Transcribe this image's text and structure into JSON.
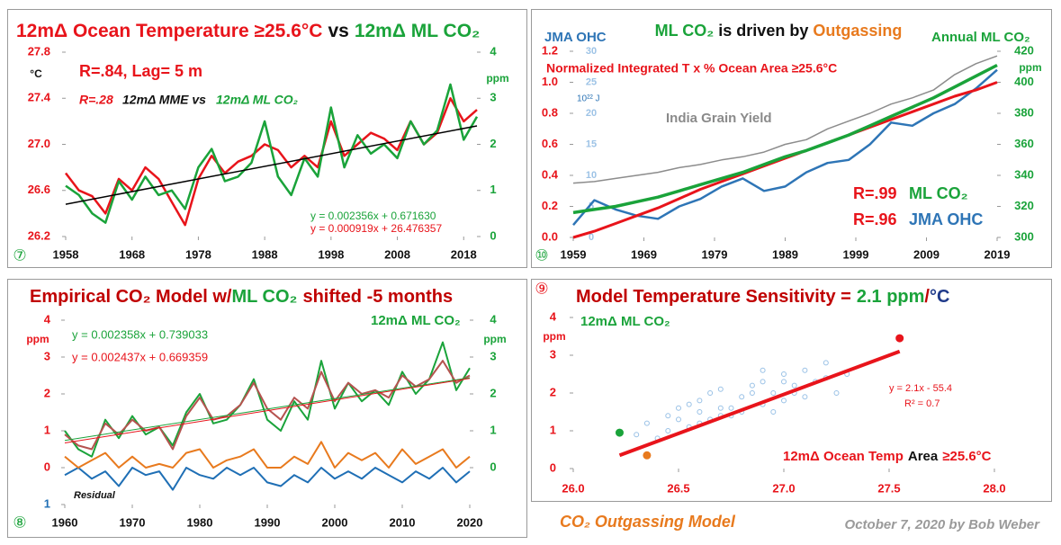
{
  "chart_data": [
    {
      "type": "line",
      "panel_label": "⑦",
      "title": [
        {
          "text": "12mΔ Ocean Temperature ≥25.6°C",
          "color": "#e8141b"
        },
        {
          "text": "vs",
          "color": "#111111"
        },
        {
          "text": "12mΔ ML CO₂",
          "color": "#1aa33a"
        }
      ],
      "ylabel": "°C",
      "y2label": "ppm",
      "x": [
        1958,
        1960,
        1962,
        1964,
        1966,
        1968,
        1970,
        1972,
        1974,
        1976,
        1978,
        1980,
        1982,
        1984,
        1986,
        1988,
        1990,
        1992,
        1994,
        1996,
        1998,
        2000,
        2002,
        2004,
        2006,
        2008,
        2010,
        2012,
        2014,
        2016,
        2018,
        2020
      ],
      "xlim": [
        1958,
        2020
      ],
      "xticks": [
        1958,
        1968,
        1978,
        1988,
        1998,
        2008,
        2018
      ],
      "ylim": [
        26.2,
        27.8
      ],
      "yticks": [
        26.2,
        26.6,
        {
          "value": 27,
          "label": "27.0"
        },
        27.4,
        27.8
      ],
      "y2lim": [
        0,
        4
      ],
      "y2ticks": [
        0,
        1,
        2,
        3,
        4
      ],
      "series": [
        {
          "color": "#e8141b",
          "values": [
            26.75,
            26.6,
            26.55,
            26.4,
            26.7,
            26.6,
            26.8,
            26.7,
            26.5,
            26.3,
            26.7,
            26.9,
            26.75,
            26.85,
            26.9,
            27.0,
            26.95,
            26.8,
            26.9,
            26.8,
            27.2,
            26.9,
            27.0,
            27.1,
            27.05,
            26.95,
            27.2,
            27.0,
            27.1,
            27.4,
            27.2,
            27.3
          ]
        },
        {
          "color": "#1aa33a",
          "axis": "y2",
          "values": [
            1.1,
            0.9,
            0.5,
            0.3,
            1.2,
            0.8,
            1.3,
            0.9,
            1.0,
            0.6,
            1.5,
            1.9,
            1.2,
            1.3,
            1.6,
            2.5,
            1.3,
            0.9,
            1.7,
            1.3,
            2.8,
            1.5,
            2.2,
            1.8,
            2.0,
            1.7,
            2.5,
            2.0,
            2.3,
            3.3,
            2.1,
            2.6
          ]
        },
        {
          "color": "#000000",
          "x": [
            1958,
            2020
          ],
          "values": [
            26.48,
            27.16
          ]
        }
      ],
      "annotations": [
        {
          "text": "R=.84, Lag= 5 m",
          "color": "#e8141b"
        },
        {
          "text": "R=.28",
          "color": "#e8141b"
        },
        {
          "text": "12mΔ MME vs",
          "color": "#111111"
        },
        {
          "text": "12mΔ ML CO₂",
          "color": "#1aa33a"
        },
        {
          "text": "y = 0.002356x + 0.671630",
          "color": "#1aa33a"
        },
        {
          "text": "y = 0.000919x + 26.476357",
          "color": "#e8141b"
        }
      ]
    },
    {
      "type": "line",
      "panel_label": "⑩",
      "title": [
        {
          "text": "ML CO₂",
          "color": "#1aa33a"
        },
        {
          "text": "is driven by",
          "color": "#111111"
        },
        {
          "text": "Outgassing",
          "color": "#e87a1e"
        }
      ],
      "y2label": "ppm",
      "x": [
        1959,
        1962,
        1965,
        1968,
        1971,
        1974,
        1977,
        1980,
        1983,
        1986,
        1989,
        1992,
        1995,
        1998,
        2001,
        2004,
        2007,
        2010,
        2013,
        2016,
        2019
      ],
      "xlim": [
        1959,
        2019
      ],
      "xticks": [
        1959,
        1969,
        1979,
        1989,
        1999,
        2009,
        2019
      ],
      "ylim": [
        0,
        1.2
      ],
      "yticks": [
        {
          "value": 0,
          "label": "0.0"
        },
        0.2,
        0.4,
        0.6,
        0.8,
        {
          "value": 1,
          "label": "1.0"
        },
        1.2
      ],
      "y2lim": [
        300,
        420
      ],
      "y2ticks": [
        300,
        320,
        340,
        360,
        380,
        400,
        420
      ],
      "y3lim": [
        0,
        30
      ],
      "y3ticks": [
        0,
        5,
        10,
        15,
        20,
        25,
        30
      ],
      "series": [
        {
          "color": "#8c8c8c",
          "values": [
            0.35,
            0.36,
            0.38,
            0.4,
            0.42,
            0.45,
            0.47,
            0.5,
            0.52,
            0.55,
            0.6,
            0.63,
            0.7,
            0.75,
            0.8,
            0.86,
            0.9,
            0.95,
            1.05,
            1.12,
            1.17
          ]
        },
        {
          "color": "#2e75b6",
          "axis": "y3",
          "values": [
            2,
            6,
            4.5,
            3.5,
            3,
            5,
            6.2,
            8.2,
            9.5,
            7.5,
            8.2,
            10.5,
            12,
            12.5,
            15,
            18.5,
            18,
            20,
            21.5,
            24,
            27
          ]
        },
        {
          "color": "#e8141b",
          "values": [
            0.0,
            0.04,
            0.09,
            0.14,
            0.19,
            0.25,
            0.31,
            0.36,
            0.41,
            0.46,
            0.51,
            0.56,
            0.61,
            0.66,
            0.71,
            0.76,
            0.81,
            0.86,
            0.91,
            0.95,
            1.0
          ]
        },
        {
          "color": "#1aa33a",
          "axis": "y2",
          "values": [
            316,
            318,
            320,
            323,
            326,
            330,
            334,
            338,
            342,
            347,
            352,
            356,
            361,
            366,
            372,
            378,
            384,
            390,
            397,
            404,
            411
          ]
        }
      ],
      "annotations": [
        {
          "text": "JMA OHC",
          "color": "#2e75b6"
        },
        {
          "text": "Annual ML CO₂",
          "color": "#1aa33a"
        },
        {
          "text": "Normalized Integrated T x % Ocean Area ≥25.6°C",
          "color": "#e8141b"
        },
        {
          "text": "10²² J",
          "color": "#2e75b6"
        },
        {
          "text": "India Grain Yield",
          "color": "#8a8a8a"
        },
        {
          "text": "R=.99",
          "color": "#e8141b"
        },
        {
          "text": "ML CO₂",
          "color": "#1aa33a"
        },
        {
          "text": "R=.96",
          "color": "#e8141b"
        },
        {
          "text": "JMA OHC",
          "color": "#2e75b6"
        }
      ]
    },
    {
      "type": "line",
      "panel_label": "⑧",
      "title": [
        {
          "text": "Empirical CO₂ Model w/",
          "color": "#c00000"
        },
        {
          "text": "ML CO₂",
          "color": "#1aa33a"
        },
        {
          "text": "shifted -5 months",
          "color": "#c00000"
        }
      ],
      "ylabel": "ppm",
      "y2label": "ppm",
      "x": [
        1960,
        1962,
        1964,
        1966,
        1968,
        1970,
        1972,
        1974,
        1976,
        1978,
        1980,
        1982,
        1984,
        1986,
        1988,
        1990,
        1992,
        1994,
        1996,
        1998,
        2000,
        2002,
        2004,
        2006,
        2008,
        2010,
        2012,
        2014,
        2016,
        2018,
        2020
      ],
      "xlim": [
        1960,
        2020
      ],
      "xticks": [
        1960,
        1970,
        1980,
        1990,
        2000,
        2010,
        2020
      ],
      "ylim": [
        -1,
        4
      ],
      "yticks": [
        4,
        3,
        2,
        1,
        0,
        {
          "value": -1,
          "label": "1"
        }
      ],
      "y2lim": [
        -1,
        4
      ],
      "y2ticks": [
        4,
        3,
        2,
        1,
        0
      ],
      "series": [
        {
          "color": "#1aa33a",
          "values": [
            1.0,
            0.5,
            0.3,
            1.3,
            0.8,
            1.4,
            0.9,
            1.1,
            0.6,
            1.5,
            2.0,
            1.2,
            1.3,
            1.7,
            2.4,
            1.3,
            1.0,
            1.8,
            1.3,
            2.9,
            1.6,
            2.3,
            1.8,
            2.1,
            1.7,
            2.6,
            2.0,
            2.4,
            3.4,
            2.1,
            2.7
          ]
        },
        {
          "color": "#b5534f",
          "values": [
            0.9,
            0.6,
            0.5,
            1.2,
            0.9,
            1.3,
            1.0,
            1.1,
            0.5,
            1.4,
            1.9,
            1.3,
            1.4,
            1.7,
            2.3,
            1.6,
            1.3,
            1.9,
            1.6,
            2.6,
            1.8,
            2.3,
            2.0,
            2.1,
            1.9,
            2.5,
            2.2,
            2.4,
            2.9,
            2.3,
            2.5
          ]
        },
        {
          "color": "#1f6fb5",
          "values": [
            -0.2,
            0.0,
            -0.3,
            -0.1,
            -0.5,
            0.0,
            -0.2,
            -0.1,
            -0.6,
            0.0,
            -0.2,
            -0.3,
            0.0,
            -0.2,
            0.0,
            -0.4,
            -0.5,
            -0.2,
            -0.4,
            0.0,
            -0.3,
            -0.1,
            -0.3,
            0.0,
            -0.2,
            -0.4,
            -0.1,
            -0.3,
            0.0,
            -0.4,
            -0.1
          ]
        },
        {
          "color": "#e87a1e",
          "values": [
            0.3,
            0.0,
            0.2,
            0.4,
            0.0,
            0.3,
            0.0,
            0.1,
            0.0,
            0.4,
            0.5,
            0.0,
            0.2,
            0.3,
            0.5,
            0.0,
            0.0,
            0.3,
            0.1,
            0.7,
            0.0,
            0.4,
            0.2,
            0.4,
            0.0,
            0.5,
            0.1,
            0.3,
            0.5,
            0.0,
            0.3
          ]
        },
        {
          "color": "#1aa33a",
          "x": [
            1960,
            2020
          ],
          "values": [
            0.74,
            2.44
          ]
        },
        {
          "color": "#e8141b",
          "x": [
            1960,
            2020
          ],
          "values": [
            0.67,
            2.42
          ]
        }
      ],
      "annotations": [
        {
          "text": "y = 0.002358x + 0.739033",
          "color": "#1aa33a"
        },
        {
          "text": "y = 0.002437x + 0.669359",
          "color": "#e8141b"
        },
        {
          "text": "12mΔ ML CO₂",
          "color": "#1aa33a"
        },
        {
          "text": "Residual",
          "color": "#111111"
        }
      ]
    },
    {
      "type": "scatter",
      "panel_label": "⑨",
      "title": [
        {
          "text": "Model Temperature Sensitivity =",
          "color": "#c00000"
        },
        {
          "text": "2.1 ppm",
          "color": "#1aa33a"
        },
        {
          "text": "/",
          "color": "#c00000"
        },
        {
          "text": "°C",
          "color": "#1f3a8a"
        }
      ],
      "ylabel": "ppm",
      "xlabel": [
        {
          "text": "12mΔ Ocean Temp",
          "color": "#e8141b"
        },
        {
          "text": "Area",
          "color": "#111111"
        },
        {
          "text": "≥25.6°C",
          "color": "#e8141b"
        }
      ],
      "xlim": [
        26,
        28
      ],
      "xticks": [
        {
          "value": 26,
          "label": "26.0"
        },
        26.5,
        {
          "value": 27,
          "label": "27.0"
        },
        27.5,
        {
          "value": 28,
          "label": "28.0"
        }
      ],
      "ylim": [
        0,
        4
      ],
      "yticks": [
        0,
        1,
        2,
        3,
        4
      ],
      "series": [
        {
          "color": "#7fb2e0",
          "x": [
            26.3,
            26.35,
            26.4,
            26.45,
            26.5,
            26.5,
            26.55,
            26.6,
            26.6,
            26.65,
            26.7,
            26.7,
            26.75,
            26.8,
            26.8,
            26.85,
            26.9,
            26.9,
            26.95,
            27.0,
            27.0,
            27.05,
            27.1,
            27.1,
            27.15,
            27.2,
            27.25,
            27.3,
            26.45,
            26.55,
            26.65,
            26.75,
            26.85,
            26.95,
            27.05,
            26.6,
            26.7,
            26.9,
            27.0,
            27.2
          ],
          "values": [
            0.9,
            1.2,
            0.8,
            1.0,
            1.3,
            1.6,
            1.1,
            1.5,
            1.8,
            1.3,
            1.6,
            2.1,
            1.4,
            1.9,
            1.5,
            2.0,
            1.7,
            2.3,
            2.0,
            1.8,
            2.5,
            2.2,
            1.9,
            2.6,
            2.3,
            2.4,
            2.0,
            2.5,
            1.4,
            1.7,
            2.0,
            1.6,
            2.2,
            1.5,
            2.0,
            1.2,
            1.4,
            2.6,
            2.3,
            2.8
          ]
        },
        {
          "type": "line",
          "color": "#e8141b",
          "x": [
            26.22,
            27.55
          ],
          "values": [
            0.35,
            3.1
          ]
        },
        {
          "color": "#1aa33a",
          "x": [
            26.22
          ],
          "values": [
            0.95
          ]
        },
        {
          "color": "#e87a1e",
          "x": [
            26.35
          ],
          "values": [
            0.35
          ]
        },
        {
          "color": "#e8141b",
          "x": [
            27.55
          ],
          "values": [
            3.45
          ]
        }
      ],
      "annotations": [
        {
          "text": "12mΔ ML CO₂",
          "color": "#1aa33a"
        },
        {
          "text": "y = 2.1x - 55.4",
          "color": "#e8141b"
        },
        {
          "text": "R² = 0.7",
          "color": "#e8141b"
        }
      ]
    }
  ],
  "footer": {
    "title": "CO₂ Outgassing Model",
    "credit": "October 7, 2020  by Bob Weber"
  }
}
